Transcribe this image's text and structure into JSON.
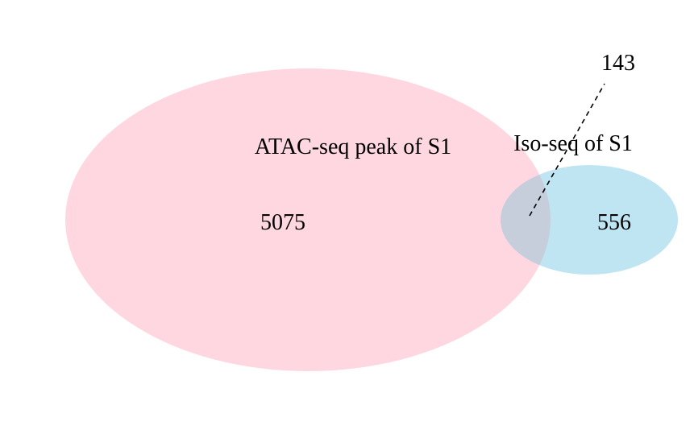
{
  "chart_data": {
    "type": "venn",
    "sets": [
      {
        "name": "ATAC-seq peak of S1",
        "only_count": "5075",
        "color": "#ffd7e0"
      },
      {
        "name": "Iso-seq of S1",
        "only_count": "556",
        "color": "#bfe5f3"
      }
    ],
    "intersection": {
      "count": "143",
      "color": "#c6cddb"
    },
    "leader_line": "dashed"
  }
}
